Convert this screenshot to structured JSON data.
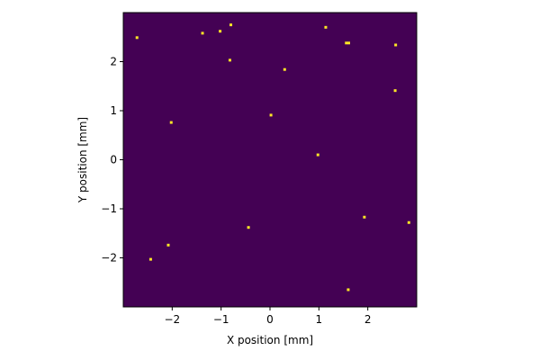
{
  "chart_data": {
    "type": "heatmap",
    "xlabel": "X position [mm]",
    "ylabel": "Y position [mm]",
    "xlim": [
      -3.0,
      3.0
    ],
    "ylim": [
      -3.0,
      3.0
    ],
    "xticks": [
      {
        "value": -2,
        "label": "−2"
      },
      {
        "value": -1,
        "label": "−1"
      },
      {
        "value": 0,
        "label": "0"
      },
      {
        "value": 1,
        "label": "1"
      },
      {
        "value": 2,
        "label": "2"
      }
    ],
    "yticks": [
      {
        "value": -2,
        "label": "−2"
      },
      {
        "value": -1,
        "label": "−1"
      },
      {
        "value": 0,
        "label": "0"
      },
      {
        "value": 1,
        "label": "1"
      },
      {
        "value": 2,
        "label": "2"
      }
    ],
    "grid": false,
    "background_color": "#440154",
    "hit_color": "#fde725",
    "hits": [
      {
        "x": -2.72,
        "y": 2.49
      },
      {
        "x": -1.38,
        "y": 2.58
      },
      {
        "x": -1.02,
        "y": 2.62
      },
      {
        "x": -0.8,
        "y": 2.75
      },
      {
        "x": -0.82,
        "y": 2.03
      },
      {
        "x": 1.14,
        "y": 2.7
      },
      {
        "x": 1.56,
        "y": 2.38
      },
      {
        "x": 1.61,
        "y": 2.38
      },
      {
        "x": 2.57,
        "y": 2.34
      },
      {
        "x": 0.3,
        "y": 1.84
      },
      {
        "x": 2.56,
        "y": 1.41
      },
      {
        "x": -2.02,
        "y": 0.76
      },
      {
        "x": 0.02,
        "y": 0.91
      },
      {
        "x": 0.98,
        "y": 0.1
      },
      {
        "x": -0.44,
        "y": -1.38
      },
      {
        "x": 1.93,
        "y": -1.17
      },
      {
        "x": 2.84,
        "y": -1.28
      },
      {
        "x": -2.08,
        "y": -1.74
      },
      {
        "x": -2.44,
        "y": -2.03
      },
      {
        "x": 1.6,
        "y": -2.65
      }
    ]
  }
}
